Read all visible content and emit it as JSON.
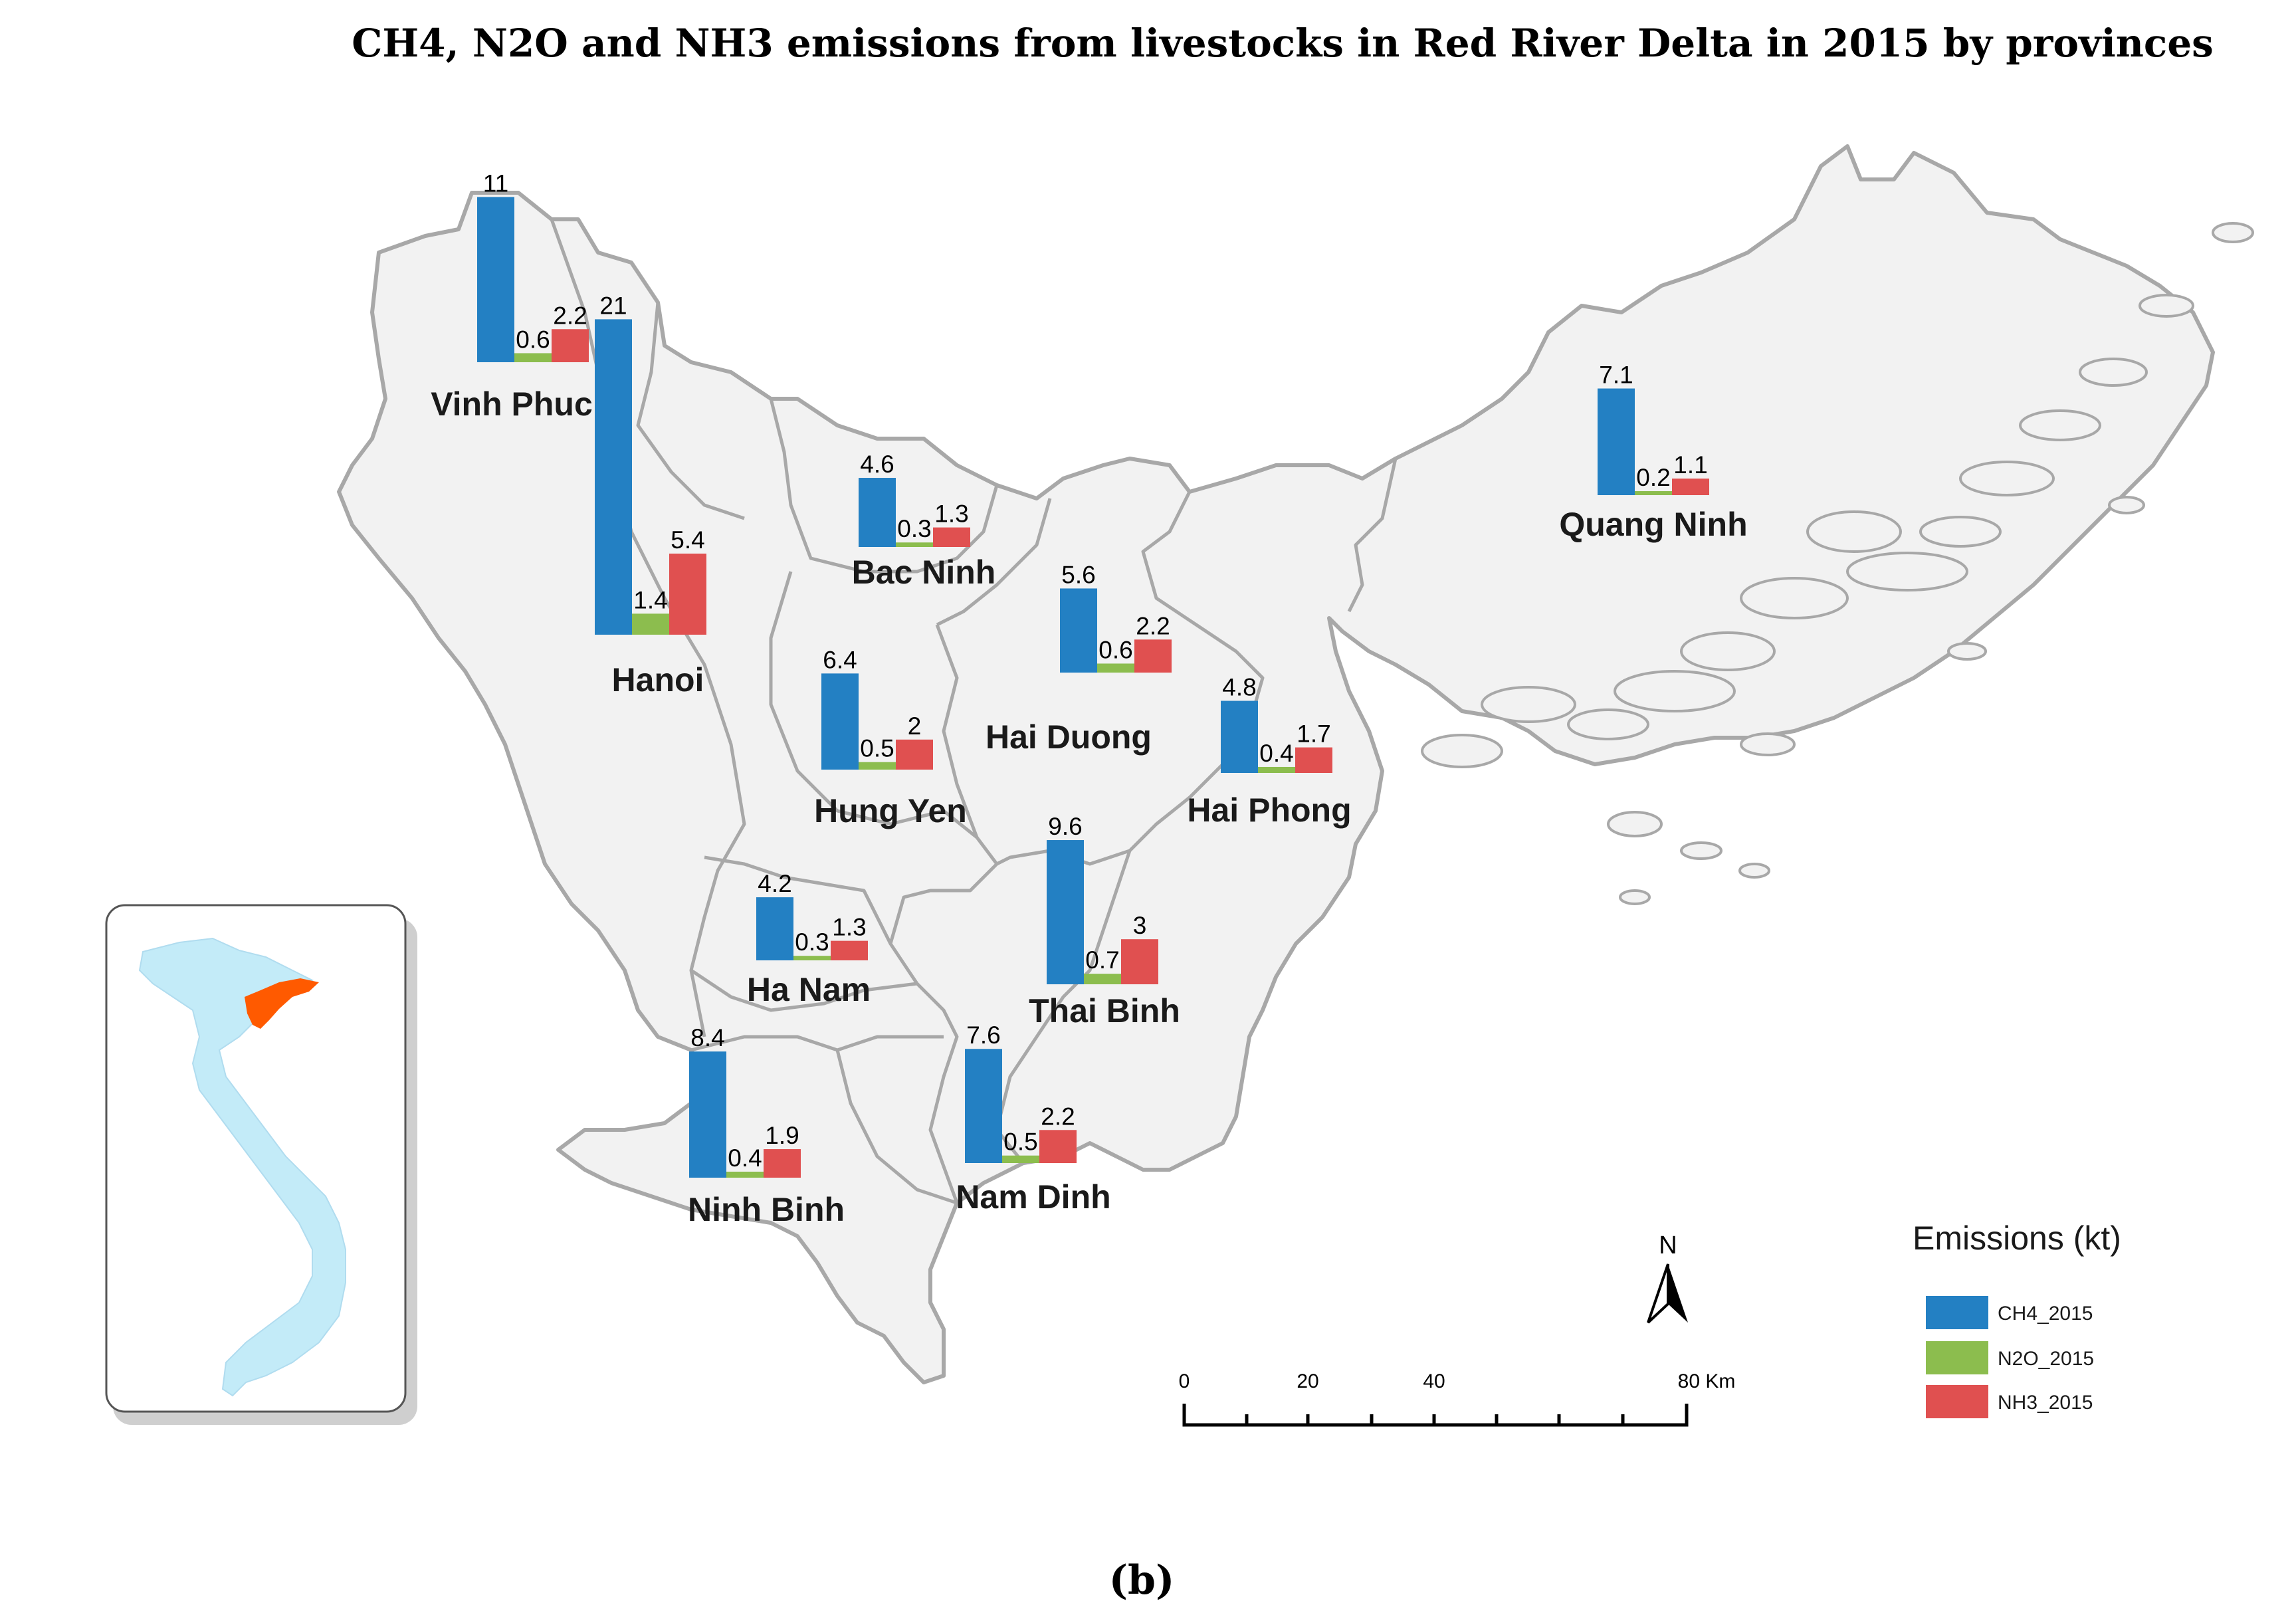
{
  "title": "CH4, N2O and NH3 emissions from livestocks in Red River Delta in 2015 by provinces",
  "caption": "(b)",
  "legend": {
    "title": "Emissions (kt)",
    "items": [
      {
        "label": "CH4_2015",
        "color": "#2380c3"
      },
      {
        "label": "N2O_2015",
        "color": "#8cbd4e"
      },
      {
        "label": "NH3_2015",
        "color": "#e05050"
      }
    ]
  },
  "north_label": "N",
  "scale_bar": {
    "labels": [
      "0",
      "20",
      "40",
      "80 Km"
    ]
  },
  "chart_data": {
    "type": "bar",
    "title": "CH4, N2O and NH3 emissions from livestocks in Red River Delta in 2015 by provinces",
    "unit": "kt",
    "series_names": [
      "CH4_2015",
      "N2O_2015",
      "NH3_2015"
    ],
    "provinces": [
      {
        "name": "Vinh Phuc",
        "values": [
          11,
          0.6,
          2.2
        ],
        "labels": [
          "11",
          "0.6",
          "2.2"
        ]
      },
      {
        "name": "Hanoi",
        "values": [
          21,
          1.4,
          5.4
        ],
        "labels": [
          "21",
          "1.4",
          "5.4"
        ]
      },
      {
        "name": "Bac Ninh",
        "values": [
          4.6,
          0.3,
          1.3
        ],
        "labels": [
          "4.6",
          "0.3",
          "1.3"
        ]
      },
      {
        "name": "Quang Ninh",
        "values": [
          7.1,
          0.2,
          1.1
        ],
        "labels": [
          "7.1",
          "0.2",
          "1.1"
        ]
      },
      {
        "name": "Hai Duong",
        "values": [
          5.6,
          0.6,
          2.2
        ],
        "labels": [
          "5.6",
          "0.6",
          "2.2"
        ]
      },
      {
        "name": "Hung Yen",
        "values": [
          6.4,
          0.5,
          2
        ],
        "labels": [
          "6.4",
          "0.5",
          "2"
        ]
      },
      {
        "name": "Hai Phong",
        "values": [
          4.8,
          0.4,
          1.7
        ],
        "labels": [
          "4.8",
          "0.4",
          "1.7"
        ]
      },
      {
        "name": "Ha Nam",
        "values": [
          4.2,
          0.3,
          1.3
        ],
        "labels": [
          "4.2",
          "0.3",
          "1.3"
        ]
      },
      {
        "name": "Thai Binh",
        "values": [
          9.6,
          0.7,
          3
        ],
        "labels": [
          "9.6",
          "0.7",
          "3"
        ]
      },
      {
        "name": "Ninh Binh",
        "values": [
          8.4,
          0.4,
          1.9
        ],
        "labels": [
          "8.4",
          "0.4",
          "1.9"
        ]
      },
      {
        "name": "Nam Dinh",
        "values": [
          7.6,
          0.5,
          2.2
        ],
        "labels": [
          "7.6",
          "0.5",
          "2.2"
        ]
      }
    ]
  }
}
